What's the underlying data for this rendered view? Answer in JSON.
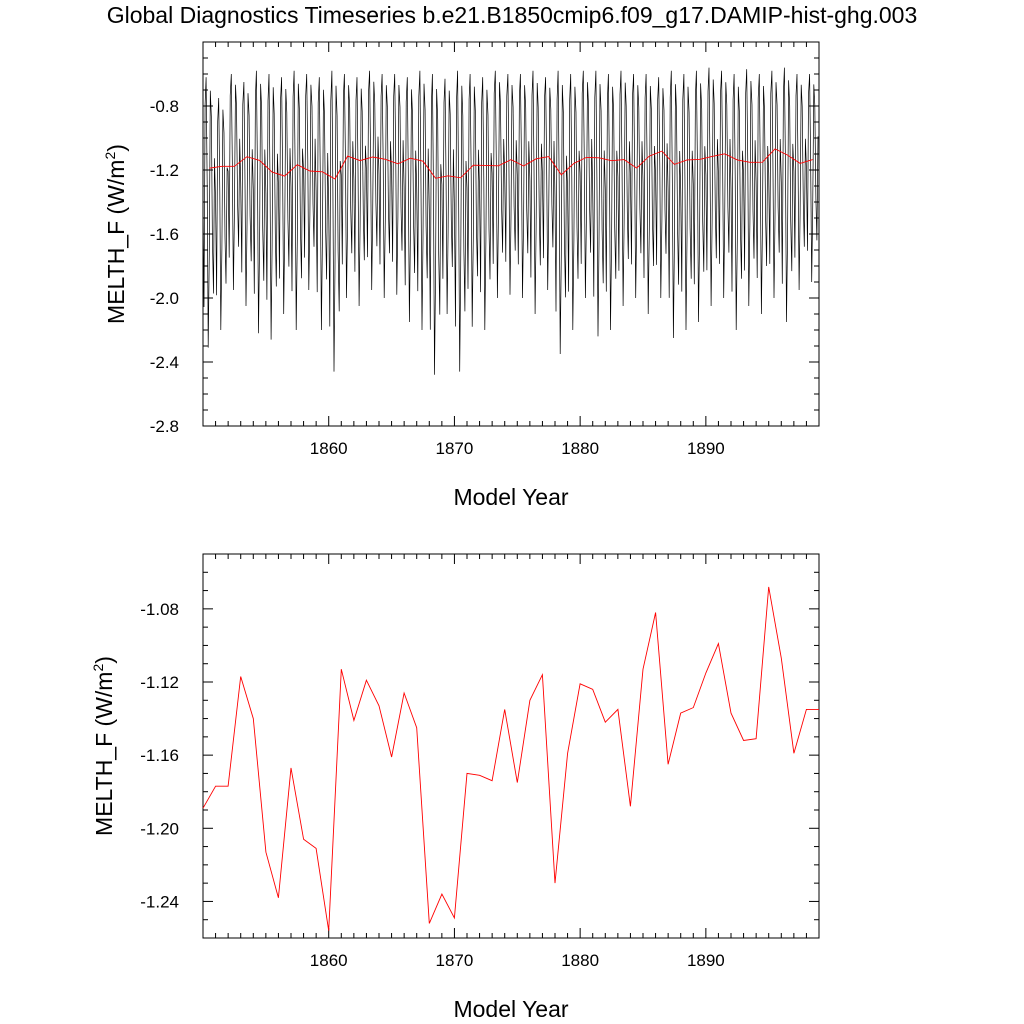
{
  "title": "Global Diagnostics Timeseries b.e21.B1850cmip6.f09_g17.DAMIP-hist-ghg.003",
  "chart_data": [
    {
      "type": "line",
      "xlabel": "Model Year",
      "ylabel": "MELTH_F (W/m",
      "ylabel_sup": "2",
      "ylabel_close": ")",
      "xlim": [
        1850,
        1899
      ],
      "ylim": [
        -2.8,
        -0.4
      ],
      "xticks": [
        1860,
        1870,
        1880,
        1890
      ],
      "yticks": [
        -0.8,
        -1.2,
        -1.6,
        -2.0,
        -2.4,
        -2.8
      ],
      "ytick_labels": [
        "-0.8",
        "-1.2",
        "-1.6",
        "-2.0",
        "-2.4",
        "-2.8"
      ],
      "xtick_labels": [
        "1860",
        "1870",
        "1880",
        "1890"
      ],
      "monthly_minima": [
        -2.31,
        -2.2,
        -1.95,
        -2.05,
        -2.22,
        -2.26,
        -2.1,
        -2.2,
        -1.95,
        -2.2,
        -2.46,
        -2.0,
        -2.05,
        -1.95,
        -2.0,
        -1.98,
        -2.15,
        -2.2,
        -2.48,
        -2.1,
        -2.46,
        -2.18,
        -2.2,
        -2.0,
        -1.98,
        -2.0,
        -2.1,
        -1.95,
        -2.35,
        -2.2,
        -2.0,
        -2.24,
        -2.2,
        -2.05,
        -2.0,
        -2.1,
        -2.0,
        -2.25,
        -2.2,
        -2.15,
        -2.05,
        -2.0,
        -2.2,
        -2.05,
        -2.1,
        -2.0,
        -2.15,
        -1.95,
        -1.9
      ],
      "monthly_maxima": [
        -0.62,
        -0.75,
        -0.6,
        -0.65,
        -0.58,
        -0.6,
        -0.62,
        -0.58,
        -0.6,
        -0.62,
        -0.58,
        -0.6,
        -0.62,
        -0.58,
        -0.6,
        -0.6,
        -0.62,
        -0.58,
        -0.6,
        -0.63,
        -0.58,
        -0.6,
        -0.62,
        -0.58,
        -0.6,
        -0.6,
        -0.58,
        -0.62,
        -0.58,
        -0.6,
        -0.58,
        -0.58,
        -0.6,
        -0.58,
        -0.6,
        -0.6,
        -0.62,
        -0.58,
        -0.6,
        -0.58,
        -0.56,
        -0.58,
        -0.6,
        -0.57,
        -0.6,
        -0.58,
        -0.56,
        -0.6,
        -0.6
      ],
      "series": [
        {
          "type": "monthly",
          "color": "#000000"
        },
        {
          "type": "annual",
          "color": "#ff0000"
        }
      ]
    },
    {
      "type": "line",
      "xlabel": "Model Year",
      "ylabel": "MELTH_F (W/m",
      "ylabel_sup": "2",
      "ylabel_close": ")",
      "xlim": [
        1850,
        1899
      ],
      "ylim": [
        -1.26,
        -1.05
      ],
      "yticks": [
        -1.08,
        -1.12,
        -1.16,
        -1.2,
        -1.24
      ],
      "ytick_labels": [
        "-1.08",
        "-1.12",
        "-1.16",
        "-1.20",
        "-1.24"
      ],
      "xticks": [
        1860,
        1870,
        1880,
        1890
      ],
      "xtick_labels": [
        "1860",
        "1870",
        "1880",
        "1890"
      ],
      "series": [
        {
          "type": "annual",
          "color": "#ff0000",
          "x": [
            1850,
            1851,
            1852,
            1853,
            1854,
            1855,
            1856,
            1857,
            1858,
            1859,
            1860,
            1861,
            1862,
            1863,
            1864,
            1865,
            1866,
            1867,
            1868,
            1869,
            1870,
            1871,
            1872,
            1873,
            1874,
            1875,
            1876,
            1877,
            1878,
            1879,
            1880,
            1881,
            1882,
            1883,
            1884,
            1885,
            1886,
            1887,
            1888,
            1889,
            1890,
            1891,
            1892,
            1893,
            1894,
            1895,
            1896,
            1897,
            1898,
            1899
          ],
          "values": [
            -1.189,
            -1.177,
            -1.177,
            -1.117,
            -1.14,
            -1.213,
            -1.238,
            -1.167,
            -1.206,
            -1.211,
            -1.256,
            -1.113,
            -1.141,
            -1.119,
            -1.133,
            -1.161,
            -1.126,
            -1.145,
            -1.252,
            -1.236,
            -1.249,
            -1.17,
            -1.171,
            -1.174,
            -1.135,
            -1.175,
            -1.13,
            -1.116,
            -1.23,
            -1.159,
            -1.121,
            -1.124,
            -1.142,
            -1.135,
            -1.188,
            -1.113,
            -1.082,
            -1.165,
            -1.137,
            -1.134,
            -1.115,
            -1.099,
            -1.137,
            -1.152,
            -1.151,
            -1.068,
            -1.107,
            -1.159,
            -1.135,
            -1.135
          ]
        }
      ]
    }
  ]
}
